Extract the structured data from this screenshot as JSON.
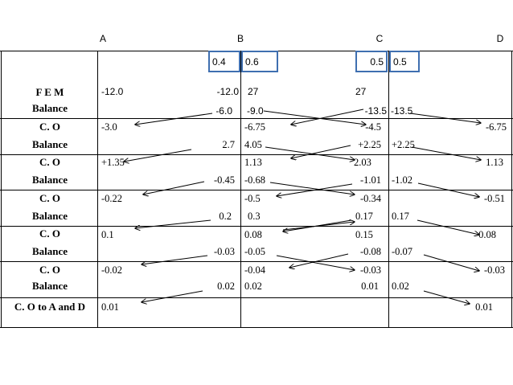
{
  "columns": [
    "A",
    "B",
    "C",
    "D"
  ],
  "distribution_factors": {
    "b_left": "0.4",
    "b_right": "0.6",
    "c_left": "0.5",
    "c_right": "0.5"
  },
  "rows": [
    {
      "label1": "F E M",
      "label2": "Balance",
      "line1": {
        "A": "-12.0",
        "BL": "-12.0",
        "BR": "27",
        "CL": "27"
      },
      "line2": {
        "BL": "-6.0",
        "BR": "-9.0",
        "CL": "-13.5",
        "CR": "-13.5"
      }
    },
    {
      "label1": "C. O",
      "label2": "Balance",
      "line1": {
        "A": "-3.0",
        "BR": "-6.75",
        "CL": "-4.5",
        "D": "-6.75"
      },
      "line2": {
        "BL": "2.7",
        "BR": "4.05",
        "CL": "+2.25",
        "CR": "+2.25"
      }
    },
    {
      "label1": "C. O",
      "label2": "Balance",
      "line1": {
        "A": "+1.35",
        "BR": "1.13",
        "CL": "2.03",
        "D": "1.13"
      },
      "line2": {
        "BL": "-0.45",
        "BR": "-0.68",
        "CL": "-1.01",
        "CR": "-1.02"
      }
    },
    {
      "label1": "C. O",
      "label2": "Balance",
      "line1": {
        "A": "-0.22",
        "BR": "-0.5",
        "CL": "-0.34",
        "D": "-0.51"
      },
      "line2": {
        "BL": "0.2",
        "BR": "0.3",
        "CL": "0.17",
        "CR": "0.17"
      }
    },
    {
      "label1": "C. O",
      "label2": "Balance",
      "line1": {
        "A": "0.1",
        "BR": "0.08",
        "CL": "0.15",
        "D": "0.08"
      },
      "line2": {
        "BL": "-0.03",
        "BR": "-0.05",
        "CL": "-0.08",
        "CR": "-0.07"
      }
    },
    {
      "label1": "C. O",
      "label2": "Balance",
      "line1": {
        "A": "-0.02",
        "BR": "-0.04",
        "CL": "-0.03",
        "D": "-0.03"
      },
      "line2": {
        "BL": "0.02",
        "BR": "0.02",
        "CL": "0.01",
        "CR": "0.02"
      }
    },
    {
      "label1": "C. O to A and D",
      "line1": {
        "A": "0.01",
        "D": "0.01"
      }
    }
  ],
  "colors": {
    "df_box_border": "#3f6fb0",
    "grid": "#000000",
    "arrow": "#000000"
  }
}
